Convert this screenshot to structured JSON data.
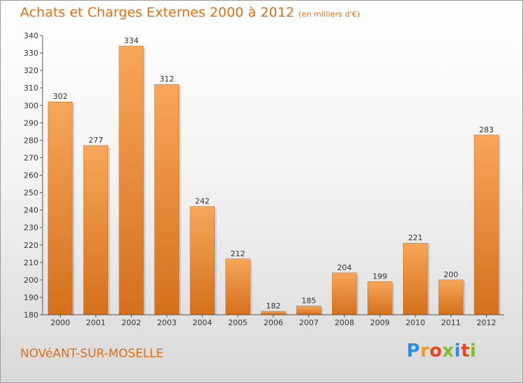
{
  "title": "Achats et Charges Externes 2000 à 2012",
  "title_unit": "(en milliers d'€)",
  "commune": "NOVéANT-SUR-MOSELLE",
  "brand": {
    "letters": [
      "P",
      "r",
      "o",
      "x",
      "i",
      "t",
      "i"
    ],
    "colors": [
      "#2f8fd6",
      "#f29a1e",
      "#e8461d",
      "#7bbf2a",
      "#2f8fd6",
      "#e8461d",
      "#7bbf2a"
    ]
  },
  "colors": {
    "accent": "#e06e14",
    "bar_top": "#f7a65a",
    "bar_bottom": "#d4701c"
  },
  "chart_data": {
    "type": "bar",
    "title": "Achats et Charges Externes 2000 à 2012",
    "categories": [
      "2000",
      "2001",
      "2002",
      "2003",
      "2004",
      "2005",
      "2006",
      "2007",
      "2008",
      "2009",
      "2010",
      "2011",
      "2012"
    ],
    "values": [
      302,
      277,
      334,
      312,
      242,
      212,
      182,
      185,
      204,
      199,
      221,
      200,
      283
    ],
    "ylim": [
      180,
      340
    ],
    "yticks": [
      180,
      190,
      200,
      210,
      220,
      230,
      240,
      250,
      260,
      270,
      280,
      290,
      300,
      310,
      320,
      330,
      340
    ],
    "grid": false,
    "data_labels": true
  }
}
